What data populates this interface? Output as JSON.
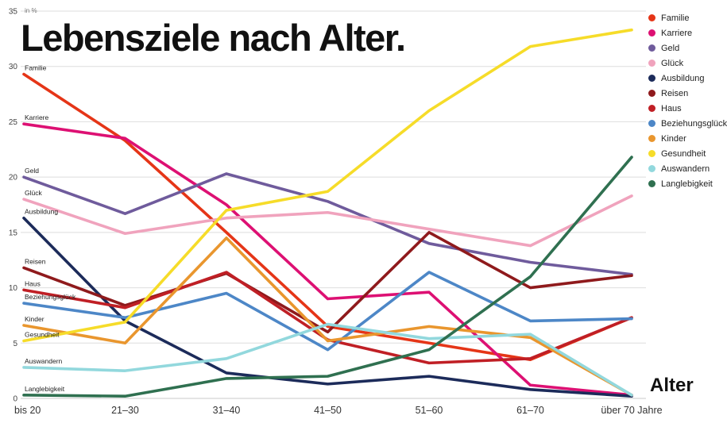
{
  "title": "Lebensziele nach Alter.",
  "y_axis_unit": "in %",
  "x_axis_label": "Alter",
  "chart_data": {
    "type": "line",
    "title": "Lebensziele nach Alter.",
    "xlabel": "Alter",
    "ylabel": "in %",
    "ylim": [
      0,
      35
    ],
    "y_ticks": [
      0,
      5,
      10,
      15,
      20,
      25,
      30,
      35
    ],
    "grid": "horizontal",
    "legend_position": "top-right",
    "categories": [
      "bis 20",
      "21–30",
      "31–40",
      "41–50",
      "51–60",
      "61–70",
      "über 70 Jahre"
    ],
    "series": [
      {
        "name": "Familie",
        "color": "#e53517",
        "values": [
          29.3,
          23.3,
          15.0,
          6.5,
          5.0,
          3.5,
          7.3
        ]
      },
      {
        "name": "Karriere",
        "color": "#dd1073",
        "values": [
          24.8,
          23.5,
          17.5,
          9.0,
          9.6,
          1.2,
          0.3
        ]
      },
      {
        "name": "Geld",
        "color": "#6f5b9c",
        "values": [
          20.0,
          16.7,
          20.3,
          17.8,
          14.0,
          12.3,
          11.2
        ]
      },
      {
        "name": "Glück",
        "color": "#f0a3bd",
        "values": [
          18.0,
          14.9,
          16.3,
          16.8,
          15.3,
          13.8,
          18.3
        ]
      },
      {
        "name": "Ausbildung",
        "color": "#1c2b5a",
        "values": [
          16.3,
          7.0,
          2.3,
          1.3,
          2.0,
          0.8,
          0.2
        ]
      },
      {
        "name": "Reisen",
        "color": "#8f1a1c",
        "values": [
          11.8,
          8.4,
          11.3,
          6.0,
          15.0,
          10.0,
          11.1
        ]
      },
      {
        "name": "Haus",
        "color": "#c01f25",
        "values": [
          9.8,
          8.2,
          11.4,
          5.3,
          3.2,
          3.6,
          7.3
        ]
      },
      {
        "name": "Beziehungsglück",
        "color": "#4d87c7",
        "values": [
          8.6,
          7.3,
          9.5,
          4.4,
          11.4,
          7.0,
          7.2
        ]
      },
      {
        "name": "Kinder",
        "color": "#e9962e",
        "values": [
          6.6,
          5.0,
          14.5,
          5.2,
          6.5,
          5.5,
          0.3
        ]
      },
      {
        "name": "Gesundheit",
        "color": "#f6dc29",
        "values": [
          5.2,
          6.9,
          17.0,
          18.7,
          26.0,
          31.8,
          33.3
        ]
      },
      {
        "name": "Auswandern",
        "color": "#92d8dd",
        "values": [
          2.8,
          2.5,
          3.6,
          6.7,
          5.4,
          5.8,
          0.3
        ]
      },
      {
        "name": "Langlebigkeit",
        "color": "#2f7050",
        "values": [
          0.3,
          0.2,
          1.8,
          2.0,
          4.4,
          11.0,
          21.8
        ]
      }
    ]
  }
}
